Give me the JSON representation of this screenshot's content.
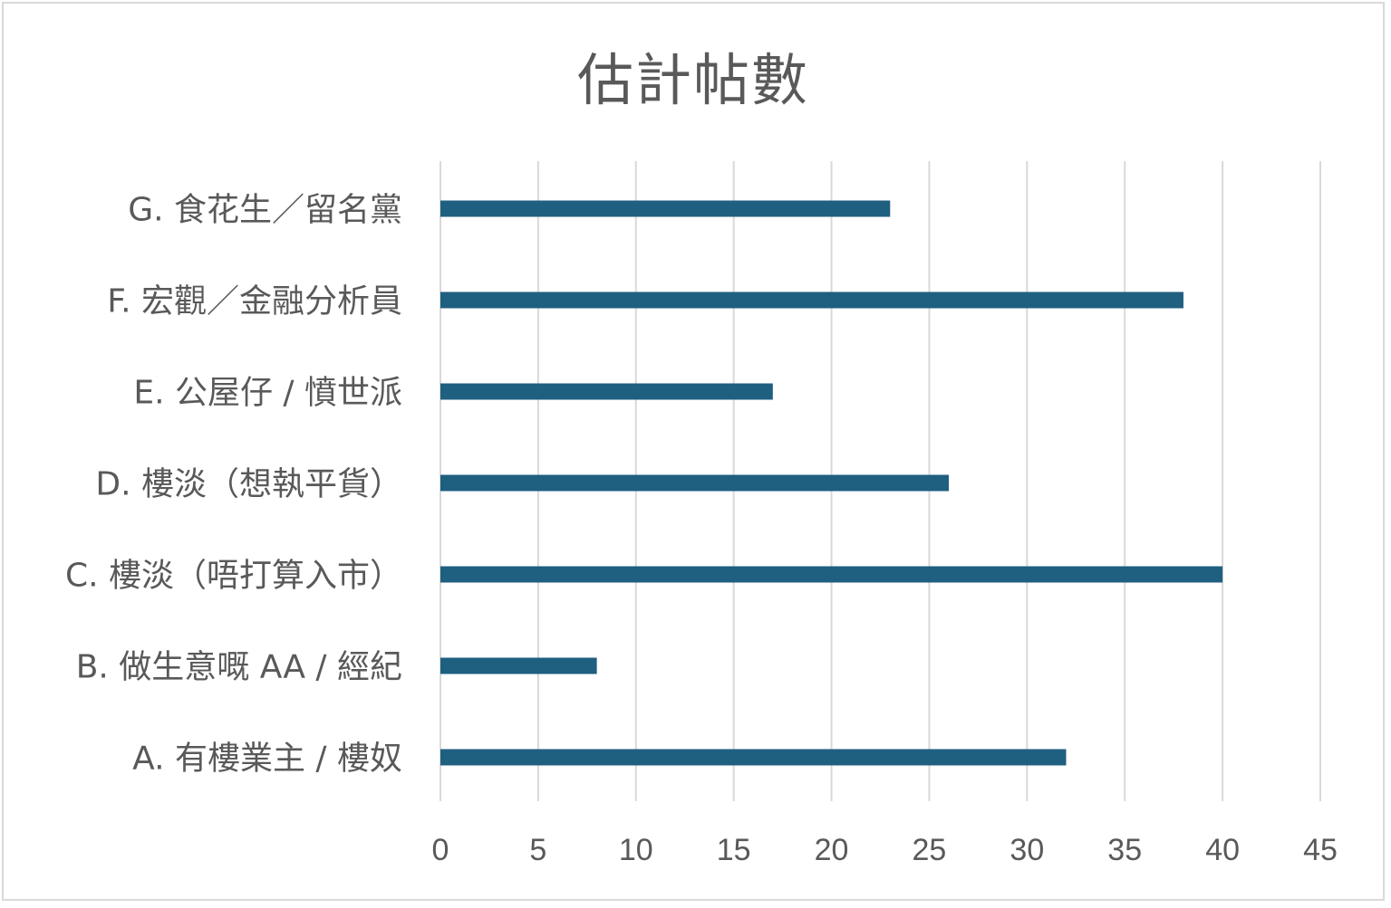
{
  "chart_data": {
    "type": "bar",
    "orientation": "horizontal",
    "title": "估計帖數",
    "categories": [
      "G. 食花生／留名黨",
      "F. 宏觀／金融分析員",
      "E. 公屋仔 / 憤世派",
      "D. 樓淡（想執平貨）",
      "C. 樓淡（唔打算入市）",
      "B. 做生意嘅 AA / 經紀",
      "A. 有樓業主 / 樓奴"
    ],
    "values": [
      23,
      38,
      17,
      26,
      40,
      8,
      32
    ],
    "xlim": [
      0,
      45
    ],
    "xticks": [
      0,
      5,
      10,
      15,
      20,
      25,
      30,
      35,
      40,
      45
    ],
    "grid": "vertical",
    "legend": "none",
    "bar_color": "#1f5f80",
    "grid_color": "#d9d9d9"
  }
}
